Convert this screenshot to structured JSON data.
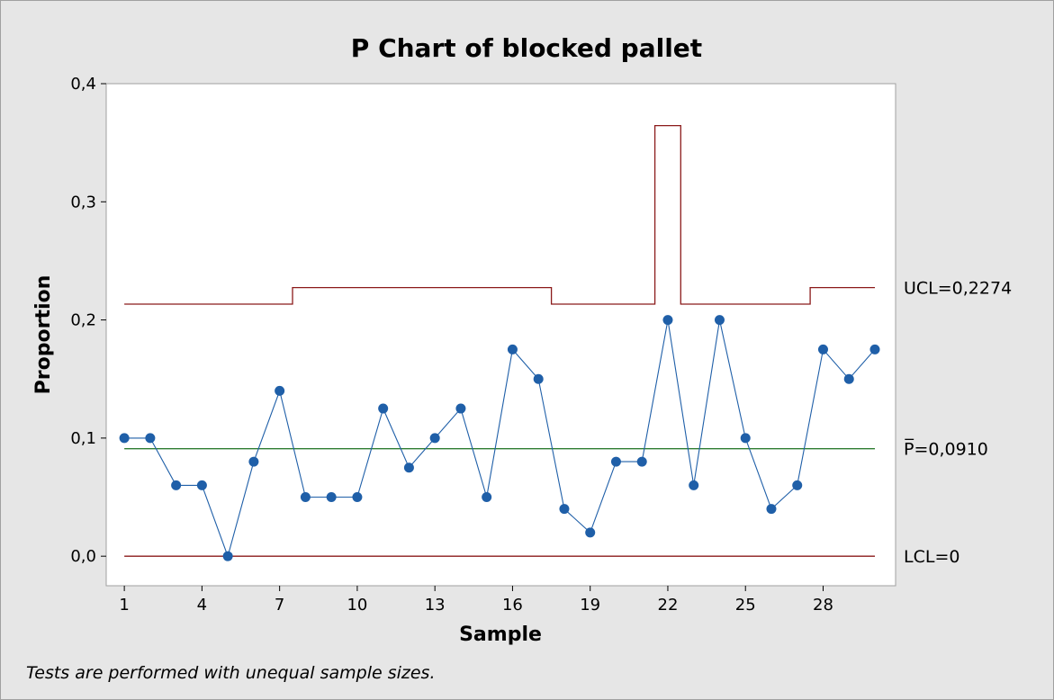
{
  "chart_data": {
    "type": "line",
    "title": "P Chart of blocked pallet",
    "xlabel": "Sample",
    "ylabel": "Proportion",
    "ylim": [
      -0.025,
      0.4
    ],
    "yticks": [
      0.0,
      0.1,
      0.2,
      0.3,
      0.4
    ],
    "ytick_labels": [
      "0,0",
      "0,1",
      "0,2",
      "0,3",
      "0,4"
    ],
    "xticks": [
      1,
      4,
      7,
      10,
      13,
      16,
      19,
      22,
      25,
      28
    ],
    "xtick_labels": [
      "1",
      "4",
      "7",
      "10",
      "13",
      "16",
      "19",
      "22",
      "25",
      "28"
    ],
    "xlim": [
      0.3,
      30.8
    ],
    "grid": false,
    "series": [
      {
        "name": "Proportion",
        "color": "#1f5fa8",
        "x": [
          1,
          2,
          3,
          4,
          5,
          6,
          7,
          8,
          9,
          10,
          11,
          12,
          13,
          14,
          15,
          16,
          17,
          18,
          19,
          20,
          21,
          22,
          23,
          24,
          25,
          26,
          27,
          28,
          29,
          30
        ],
        "values": [
          0.1,
          0.1,
          0.06,
          0.06,
          0.0,
          0.08,
          0.14,
          0.05,
          0.05,
          0.05,
          0.125,
          0.075,
          0.1,
          0.125,
          0.05,
          0.175,
          0.15,
          0.04,
          0.02,
          0.08,
          0.08,
          0.2,
          0.06,
          0.2,
          0.1,
          0.04,
          0.06,
          0.175,
          0.15,
          0.175
        ]
      }
    ],
    "center_line": {
      "label": "P̅=0,0910",
      "value": 0.091,
      "color": "#2e7d32"
    },
    "lcl": {
      "label": "LCL=0",
      "value": 0.0,
      "color": "#8b1a1a"
    },
    "ucl": {
      "label": "UCL=0,2274",
      "color": "#8b1a1a",
      "values": [
        0.2134,
        0.2134,
        0.2134,
        0.2134,
        0.2134,
        0.2134,
        0.2134,
        0.2274,
        0.2274,
        0.2274,
        0.2274,
        0.2274,
        0.2274,
        0.2274,
        0.2274,
        0.2274,
        0.2274,
        0.2134,
        0.2134,
        0.2134,
        0.2134,
        0.3645,
        0.2134,
        0.2134,
        0.2134,
        0.2134,
        0.2134,
        0.2274,
        0.2274,
        0.2274
      ]
    }
  },
  "footnote": "Tests are performed with unequal sample sizes."
}
